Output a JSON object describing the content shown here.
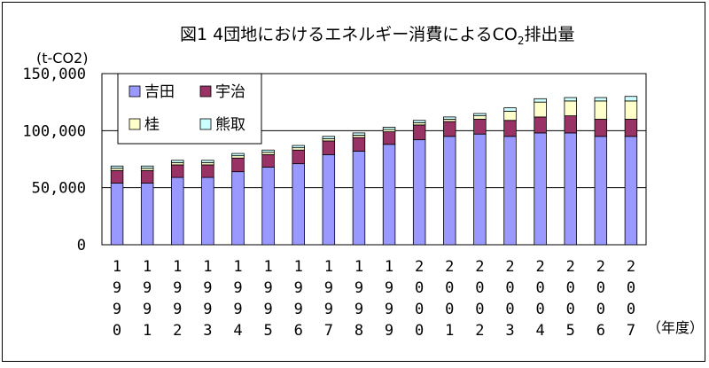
{
  "chart_data": {
    "type": "bar",
    "stacked": true,
    "title_main": "図1  4団地におけるエネルギー消費によるCO",
    "title_sub": "2",
    "title_tail": "排出量",
    "ylabel": "(t-CO2)",
    "xlabel": "（年度）",
    "ylim": [
      0,
      150000
    ],
    "yticks": [
      "150,000",
      "100,000",
      "50,000",
      "0"
    ],
    "ytick_values": [
      150000,
      100000,
      50000,
      0
    ],
    "grid": true,
    "legend_position": "top-left",
    "categories": [
      "1990",
      "1991",
      "1992",
      "1993",
      "1994",
      "1995",
      "1996",
      "1997",
      "1998",
      "1999",
      "2000",
      "2001",
      "2002",
      "2003",
      "2004",
      "2005",
      "2006",
      "2007"
    ],
    "series": [
      {
        "name": "吉田",
        "color": "#9999ff",
        "values": [
          54000,
          54000,
          59000,
          59000,
          64000,
          68000,
          71000,
          79000,
          82000,
          88000,
          92000,
          95000,
          97000,
          95000,
          98000,
          98000,
          95000,
          95000
        ]
      },
      {
        "name": "宇治",
        "color": "#993366",
        "values": [
          11000,
          11000,
          11000,
          11000,
          12000,
          11000,
          12000,
          12000,
          12000,
          11000,
          13000,
          13000,
          13000,
          14000,
          14000,
          15000,
          15000,
          15000
        ]
      },
      {
        "name": "桂",
        "color": "#ffffcc",
        "values": [
          2000,
          2000,
          2000,
          2000,
          2000,
          2000,
          2000,
          2000,
          2000,
          2000,
          2000,
          2000,
          3000,
          8000,
          13000,
          13000,
          16000,
          16000
        ]
      },
      {
        "name": "熊取",
        "color": "#ccffff",
        "values": [
          2000,
          2000,
          2000,
          2000,
          2000,
          2000,
          2000,
          2000,
          2000,
          2000,
          2000,
          2000,
          2000,
          3000,
          3000,
          3000,
          3000,
          4000
        ]
      }
    ]
  }
}
